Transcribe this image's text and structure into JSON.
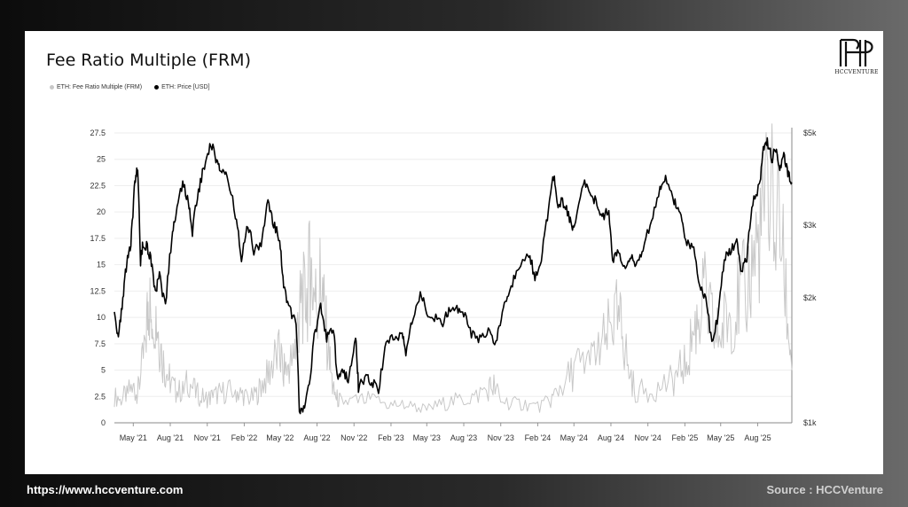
{
  "title": "Fee Ratio Multiple (FRM)",
  "brand": "HCCVENTURE",
  "footer": {
    "url": "https://www.hccventure.com",
    "source": "Source : HCCVenture"
  },
  "colors": {
    "frm": "#c8c8c8",
    "price": "#000000"
  },
  "chart_data": {
    "type": "line",
    "legend": [
      "ETH: Fee Ratio Multiple (FRM)",
      "ETH: Price [USD]"
    ],
    "x_tick_labels": [
      "May '21",
      "Aug '21",
      "Nov '21",
      "Feb '22",
      "May '22",
      "Aug '22",
      "Nov '22",
      "Feb '23",
      "May '23",
      "Aug '23",
      "Nov '23",
      "Feb '24",
      "May '24",
      "Aug '24",
      "Nov '24",
      "Feb '25",
      "May '25",
      "Aug '25"
    ],
    "y_left": {
      "ticks": [
        "0",
        "2.5",
        "5",
        "7.5",
        "10",
        "12.5",
        "15",
        "17.5",
        "20",
        "22.5",
        "25",
        "27.5"
      ],
      "range": [
        0,
        27.5
      ]
    },
    "y_right": {
      "ticks": [
        "$1k",
        "$2k",
        "$3k",
        "$5k"
      ],
      "tick_values": [
        1000,
        2000,
        3000,
        5000
      ],
      "scale": "log",
      "range": [
        1000,
        5000
      ]
    },
    "x_range": [
      "2021-03-15",
      "2025-10-25"
    ],
    "series": [
      {
        "name": "ETH: Fee Ratio Multiple (FRM)",
        "axis": "left",
        "points": [
          [
            "2021-03-15",
            2.5
          ],
          [
            "2021-04-01",
            2.3
          ],
          [
            "2021-04-15",
            2.8
          ],
          [
            "2021-05-01",
            3.5
          ],
          [
            "2021-05-10",
            2.5
          ],
          [
            "2021-05-20",
            4.5
          ],
          [
            "2021-06-01",
            8
          ],
          [
            "2021-06-08",
            12
          ],
          [
            "2021-06-15",
            10
          ],
          [
            "2021-06-22",
            11.5
          ],
          [
            "2021-07-01",
            9
          ],
          [
            "2021-07-10",
            6.5
          ],
          [
            "2021-07-20",
            5
          ],
          [
            "2021-08-01",
            4
          ],
          [
            "2021-08-15",
            3
          ],
          [
            "2021-09-01",
            3
          ],
          [
            "2021-09-15",
            4
          ],
          [
            "2021-10-01",
            3
          ],
          [
            "2021-10-15",
            2.5
          ],
          [
            "2021-11-01",
            2.3
          ],
          [
            "2021-11-15",
            2.5
          ],
          [
            "2021-12-01",
            2.8
          ],
          [
            "2021-12-20",
            3
          ],
          [
            "2022-01-10",
            3
          ],
          [
            "2022-01-25",
            2.8
          ],
          [
            "2022-02-10",
            2.3
          ],
          [
            "2022-03-01",
            2.5
          ],
          [
            "2022-03-15",
            3.5
          ],
          [
            "2022-04-01",
            4.5
          ],
          [
            "2022-04-15",
            6
          ],
          [
            "2022-05-01",
            6.5
          ],
          [
            "2022-05-10",
            5
          ],
          [
            "2022-05-20",
            5.5
          ],
          [
            "2022-06-01",
            6
          ],
          [
            "2022-06-10",
            8
          ],
          [
            "2022-06-18",
            10
          ],
          [
            "2022-06-25",
            12
          ],
          [
            "2022-07-05",
            11
          ],
          [
            "2022-07-15",
            15
          ],
          [
            "2022-07-22",
            13
          ],
          [
            "2022-08-01",
            11
          ],
          [
            "2022-08-10",
            14
          ],
          [
            "2022-08-20",
            10
          ],
          [
            "2022-09-01",
            6
          ],
          [
            "2022-09-10",
            3
          ],
          [
            "2022-09-20",
            2.3
          ],
          [
            "2022-10-01",
            2
          ],
          [
            "2022-11-01",
            2
          ],
          [
            "2022-12-01",
            2.2
          ],
          [
            "2023-01-01",
            2
          ],
          [
            "2023-02-01",
            1.7
          ],
          [
            "2023-03-01",
            1.8
          ],
          [
            "2023-04-01",
            1.5
          ],
          [
            "2023-05-01",
            1.3
          ],
          [
            "2023-06-01",
            1.7
          ],
          [
            "2023-07-01",
            2
          ],
          [
            "2023-08-01",
            2.2
          ],
          [
            "2023-09-01",
            2.6
          ],
          [
            "2023-10-01",
            3.3
          ],
          [
            "2023-10-15",
            3.5
          ],
          [
            "2023-11-01",
            2.2
          ],
          [
            "2023-12-01",
            1.8
          ],
          [
            "2024-01-01",
            1.8
          ],
          [
            "2024-02-01",
            1.5
          ],
          [
            "2024-03-01",
            2
          ],
          [
            "2024-03-20",
            3
          ],
          [
            "2024-04-10",
            4
          ],
          [
            "2024-05-01",
            5
          ],
          [
            "2024-05-20",
            6
          ],
          [
            "2024-06-10",
            5.5
          ],
          [
            "2024-07-01",
            7
          ],
          [
            "2024-07-20",
            8
          ],
          [
            "2024-08-05",
            9.5
          ],
          [
            "2024-08-20",
            10
          ],
          [
            "2024-09-01",
            8
          ],
          [
            "2024-09-15",
            5
          ],
          [
            "2024-10-01",
            3
          ],
          [
            "2024-11-01",
            3
          ],
          [
            "2024-12-01",
            3.5
          ],
          [
            "2025-01-01",
            4
          ],
          [
            "2025-01-20",
            5
          ],
          [
            "2025-02-05",
            6
          ],
          [
            "2025-02-20",
            8
          ],
          [
            "2025-03-05",
            10
          ],
          [
            "2025-03-20",
            12
          ],
          [
            "2025-04-05",
            10
          ],
          [
            "2025-04-20",
            8
          ],
          [
            "2025-05-05",
            9
          ],
          [
            "2025-05-20",
            10
          ],
          [
            "2025-06-05",
            11
          ],
          [
            "2025-06-20",
            12
          ],
          [
            "2025-07-05",
            13
          ],
          [
            "2025-07-20",
            15
          ],
          [
            "2025-08-05",
            18
          ],
          [
            "2025-08-20",
            20
          ],
          [
            "2025-09-01",
            23
          ],
          [
            "2025-09-15",
            21
          ],
          [
            "2025-10-01",
            16
          ],
          [
            "2025-10-15",
            10
          ],
          [
            "2025-10-25",
            5
          ]
        ]
      },
      {
        "name": "ETH: Price [USD]",
        "axis": "right",
        "points": [
          [
            "2021-03-15",
            1850
          ],
          [
            "2021-03-25",
            1600
          ],
          [
            "2021-04-05",
            1950
          ],
          [
            "2021-04-15",
            2450
          ],
          [
            "2021-04-25",
            2650
          ],
          [
            "2021-05-05",
            3800
          ],
          [
            "2021-05-12",
            4150
          ],
          [
            "2021-05-19",
            2450
          ],
          [
            "2021-05-25",
            2700
          ],
          [
            "2021-06-05",
            2650
          ],
          [
            "2021-06-15",
            2450
          ],
          [
            "2021-06-25",
            2050
          ],
          [
            "2021-07-05",
            2250
          ],
          [
            "2021-07-20",
            1900
          ],
          [
            "2021-08-05",
            2800
          ],
          [
            "2021-08-15",
            3200
          ],
          [
            "2021-09-01",
            3800
          ],
          [
            "2021-09-15",
            3400
          ],
          [
            "2021-09-25",
            2900
          ],
          [
            "2021-10-10",
            3600
          ],
          [
            "2021-10-25",
            4200
          ],
          [
            "2021-11-10",
            4700
          ],
          [
            "2021-11-25",
            4300
          ],
          [
            "2021-12-05",
            4000
          ],
          [
            "2021-12-20",
            3900
          ],
          [
            "2022-01-10",
            3200
          ],
          [
            "2022-01-25",
            2500
          ],
          [
            "2022-02-10",
            3000
          ],
          [
            "2022-02-25",
            2600
          ],
          [
            "2022-03-15",
            2700
          ],
          [
            "2022-04-01",
            3400
          ],
          [
            "2022-04-15",
            3000
          ],
          [
            "2022-04-30",
            2800
          ],
          [
            "2022-05-10",
            2100
          ],
          [
            "2022-05-25",
            1900
          ],
          [
            "2022-06-10",
            1700
          ],
          [
            "2022-06-18",
            1050
          ],
          [
            "2022-07-01",
            1080
          ],
          [
            "2022-07-15",
            1300
          ],
          [
            "2022-07-25",
            1600
          ],
          [
            "2022-08-10",
            1900
          ],
          [
            "2022-08-25",
            1600
          ],
          [
            "2022-09-10",
            1700
          ],
          [
            "2022-09-20",
            1300
          ],
          [
            "2022-10-05",
            1320
          ],
          [
            "2022-10-20",
            1280
          ],
          [
            "2022-11-05",
            1600
          ],
          [
            "2022-11-12",
            1220
          ],
          [
            "2022-12-01",
            1280
          ],
          [
            "2022-12-15",
            1250
          ],
          [
            "2023-01-01",
            1200
          ],
          [
            "2023-01-20",
            1550
          ],
          [
            "2023-02-10",
            1600
          ],
          [
            "2023-03-01",
            1650
          ],
          [
            "2023-03-10",
            1450
          ],
          [
            "2023-03-25",
            1750
          ],
          [
            "2023-04-15",
            2050
          ],
          [
            "2023-05-01",
            1850
          ],
          [
            "2023-05-20",
            1800
          ],
          [
            "2023-06-10",
            1750
          ],
          [
            "2023-06-25",
            1850
          ],
          [
            "2023-07-15",
            1900
          ],
          [
            "2023-08-01",
            1850
          ],
          [
            "2023-08-20",
            1650
          ],
          [
            "2023-09-10",
            1600
          ],
          [
            "2023-10-01",
            1650
          ],
          [
            "2023-10-20",
            1560
          ],
          [
            "2023-11-05",
            1850
          ],
          [
            "2023-11-20",
            2050
          ],
          [
            "2023-12-10",
            2300
          ],
          [
            "2024-01-10",
            2550
          ],
          [
            "2024-01-25",
            2250
          ],
          [
            "2024-02-10",
            2500
          ],
          [
            "2024-02-25",
            3100
          ],
          [
            "2024-03-12",
            3950
          ],
          [
            "2024-03-20",
            3400
          ],
          [
            "2024-04-05",
            3400
          ],
          [
            "2024-04-20",
            3100
          ],
          [
            "2024-05-01",
            2950
          ],
          [
            "2024-05-25",
            3800
          ],
          [
            "2024-06-10",
            3600
          ],
          [
            "2024-06-25",
            3400
          ],
          [
            "2024-07-10",
            3100
          ],
          [
            "2024-07-25",
            3300
          ],
          [
            "2024-08-05",
            2450
          ],
          [
            "2024-08-20",
            2650
          ],
          [
            "2024-09-06",
            2300
          ],
          [
            "2024-09-20",
            2500
          ],
          [
            "2024-10-05",
            2400
          ],
          [
            "2024-10-20",
            2650
          ],
          [
            "2024-11-10",
            3100
          ],
          [
            "2024-12-01",
            3650
          ],
          [
            "2024-12-15",
            3900
          ],
          [
            "2025-01-05",
            3400
          ],
          [
            "2025-01-20",
            3300
          ],
          [
            "2025-02-03",
            2700
          ],
          [
            "2025-02-20",
            2700
          ],
          [
            "2025-03-10",
            2100
          ],
          [
            "2025-03-25",
            2000
          ],
          [
            "2025-04-09",
            1550
          ],
          [
            "2025-04-25",
            1800
          ],
          [
            "2025-05-10",
            2500
          ],
          [
            "2025-05-25",
            2600
          ],
          [
            "2025-06-10",
            2700
          ],
          [
            "2025-06-22",
            2300
          ],
          [
            "2025-07-05",
            2500
          ],
          [
            "2025-07-20",
            3400
          ],
          [
            "2025-08-05",
            3700
          ],
          [
            "2025-08-15",
            4500
          ],
          [
            "2025-08-25",
            4800
          ],
          [
            "2025-09-05",
            4300
          ],
          [
            "2025-09-15",
            4600
          ],
          [
            "2025-09-25",
            4000
          ],
          [
            "2025-10-05",
            4500
          ],
          [
            "2025-10-15",
            4000
          ],
          [
            "2025-10-25",
            3800
          ]
        ]
      }
    ]
  }
}
